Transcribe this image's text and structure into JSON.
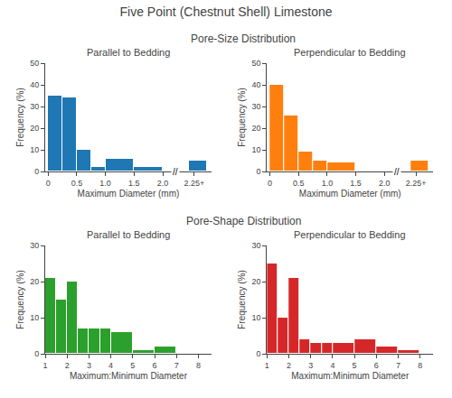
{
  "title": "Five Point (Chestnut Shell) Limestone",
  "annotations": [
    {
      "text": "Pore-Size Distribution"
    },
    {
      "text": "Pore-Shape Distribution"
    }
  ],
  "chart_data": [
    {
      "type": "histogram",
      "title": "Parallel to Bedding",
      "x_label": "Maximum Diameter (mm)",
      "y_label": "Frequency (%)",
      "bins": [
        0,
        0.25,
        0.5,
        0.75,
        1.0,
        1.5,
        2.0,
        2.45,
        2.77
      ],
      "values": [
        35,
        34,
        10,
        2,
        6,
        2,
        null,
        5
      ],
      "xlim": [
        -0.05,
        2.85
      ],
      "xticks": [
        0,
        0.5,
        {
          "value": 1.0,
          "label": "1.0"
        },
        1.5,
        {
          "value": 2.0,
          "label": "2.0"
        },
        {
          "value": 2.55,
          "label": "2.25+"
        }
      ],
      "ylim": [
        0,
        50
      ],
      "yticks": [
        0,
        10,
        20,
        30,
        40,
        50
      ],
      "grid": false,
      "annotations": [
        {
          "text": "//",
          "x": 2.22
        }
      ]
    },
    {
      "type": "histogram",
      "title": "Perpendicular to Bedding",
      "x_label": "Maximum Diameter (mm)",
      "y_label": "Frequency (%)",
      "bins": [
        0,
        0.25,
        0.5,
        0.75,
        1.0,
        1.5,
        2.0,
        2.45,
        2.77
      ],
      "values": [
        40,
        26,
        9,
        5,
        4,
        0,
        null,
        5
      ],
      "xlim": [
        -0.05,
        2.85
      ],
      "xticks": [
        0,
        0.5,
        {
          "value": 1.0,
          "label": "1.0"
        },
        1.5,
        {
          "value": 2.0,
          "label": "2.0"
        },
        {
          "value": 2.55,
          "label": "2.25+"
        }
      ],
      "ylim": [
        0,
        50
      ],
      "yticks": [
        0,
        10,
        20,
        30,
        40,
        50
      ],
      "grid": false,
      "annotations": [
        {
          "text": "//",
          "x": 2.22
        }
      ]
    },
    {
      "type": "histogram",
      "title": "Parallel to Bedding",
      "x_label": "Maximum:Minimum Diameter",
      "y_label": "Frequency (%)",
      "bins": [
        1,
        1.5,
        2,
        2.5,
        3,
        3.5,
        4,
        5,
        6,
        7
      ],
      "values": [
        21,
        15,
        20,
        7,
        7,
        7,
        6,
        1,
        2
      ],
      "xlim": [
        1,
        8.6
      ],
      "xticks": [
        1,
        2,
        3,
        4,
        5,
        6,
        7,
        8
      ],
      "ylim": [
        0,
        30
      ],
      "yticks": [
        0,
        10,
        20,
        30
      ],
      "grid": false
    },
    {
      "type": "histogram",
      "title": "Perpendicular to Bedding",
      "x_label": "Maximum:Minimum Diameter",
      "y_label": "Frequency (%)",
      "bins": [
        1,
        1.5,
        2,
        2.5,
        3,
        3.5,
        4,
        5,
        6,
        7,
        8
      ],
      "values": [
        25,
        10,
        21,
        4,
        3,
        3,
        3,
        4,
        2,
        1
      ],
      "xlim": [
        1,
        8.6
      ],
      "xticks": [
        1,
        2,
        3,
        4,
        5,
        6,
        7,
        8
      ],
      "ylim": [
        0,
        30
      ],
      "yticks": [
        0,
        10,
        20,
        30
      ],
      "grid": false
    }
  ]
}
